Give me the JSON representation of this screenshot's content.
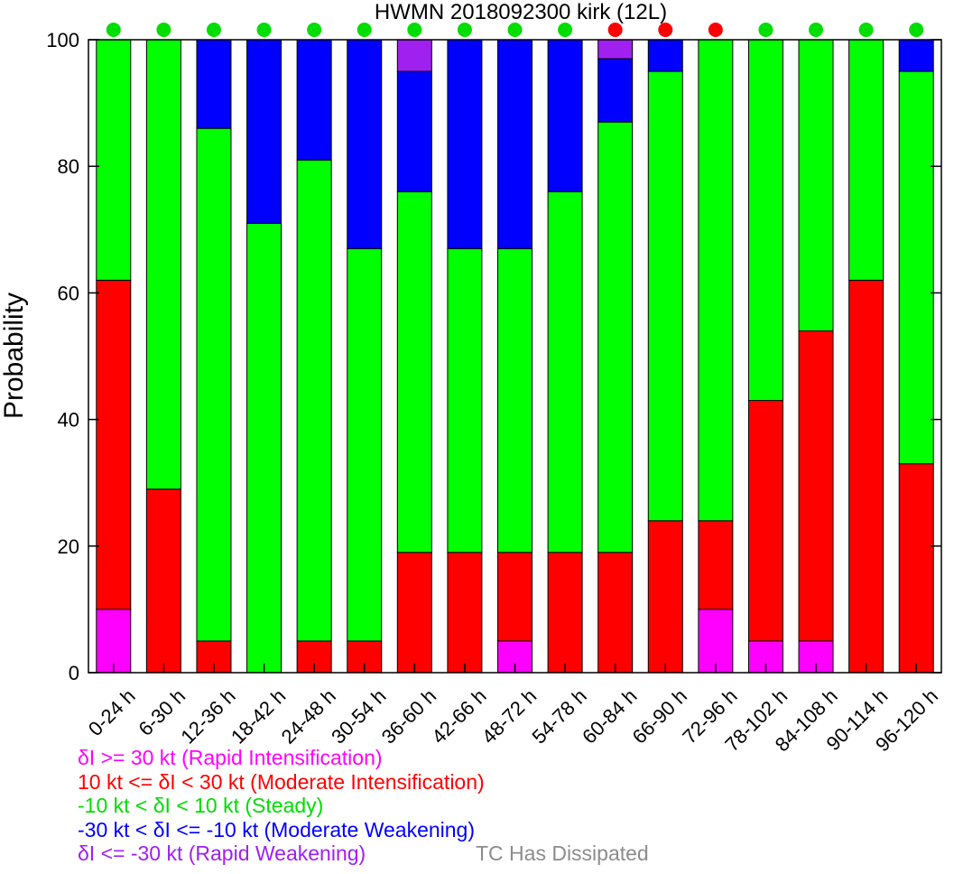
{
  "chart_data": {
    "type": "bar",
    "stacked": true,
    "title": "HWMN 2018092300 kirk (12L)",
    "xlabel": "",
    "ylabel": "Probability",
    "ylim": [
      0,
      100
    ],
    "yticks": [
      0,
      20,
      40,
      60,
      80,
      100
    ],
    "grid": false,
    "legend_placement": "bottom-left",
    "categories": [
      "0-24 h",
      "6-30 h",
      "12-36 h",
      "18-42 h",
      "24-48 h",
      "30-54 h",
      "36-60 h",
      "42-66 h",
      "48-72 h",
      "54-78 h",
      "60-84 h",
      "66-90 h",
      "72-96 h",
      "78-102 h",
      "84-108 h",
      "90-114 h",
      "96-120 h"
    ],
    "series": [
      {
        "name": "δI >= 30 kt (Rapid Intensification)",
        "color": "#ff00ff",
        "values": [
          10,
          0,
          0,
          0,
          0,
          0,
          0,
          0,
          5,
          0,
          0,
          0,
          10,
          5,
          5,
          0,
          0
        ]
      },
      {
        "name": "10 kt <= δI < 30 kt (Moderate Intensification)",
        "color": "#ff0000",
        "values": [
          52,
          29,
          5,
          0,
          5,
          5,
          19,
          19,
          14,
          19,
          19,
          24,
          14,
          38,
          49,
          62,
          33
        ]
      },
      {
        "name": "-10 kt < δI < 10 kt (Steady)",
        "color": "#00ff00",
        "values": [
          38,
          71,
          81,
          71,
          76,
          62,
          57,
          48,
          48,
          57,
          68,
          71,
          76,
          57,
          46,
          38,
          62
        ]
      },
      {
        "name": "-30 kt < δI <= -10 kt (Moderate Weakening)",
        "color": "#0000ff",
        "values": [
          0,
          0,
          14,
          29,
          19,
          33,
          19,
          33,
          33,
          24,
          10,
          5,
          0,
          0,
          0,
          0,
          5
        ]
      },
      {
        "name": "δI <= -30 kt (Rapid Weakening)",
        "color": "#a020f0",
        "values": [
          0,
          0,
          0,
          0,
          0,
          0,
          5,
          0,
          0,
          0,
          3,
          0,
          0,
          0,
          0,
          0,
          0
        ]
      }
    ],
    "indicator_dots": [
      "#00dd00",
      "#00dd00",
      "#00dd00",
      "#00dd00",
      "#00dd00",
      "#00dd00",
      "#00dd00",
      "#00dd00",
      "#00dd00",
      "#00dd00",
      "#ff0000",
      "#ff0000",
      "#ff0000",
      "#00dd00",
      "#00dd00",
      "#00dd00",
      "#00dd00"
    ],
    "dissipated_note": {
      "text": "TC Has Dissipated",
      "color": "#8c8c8c"
    }
  }
}
